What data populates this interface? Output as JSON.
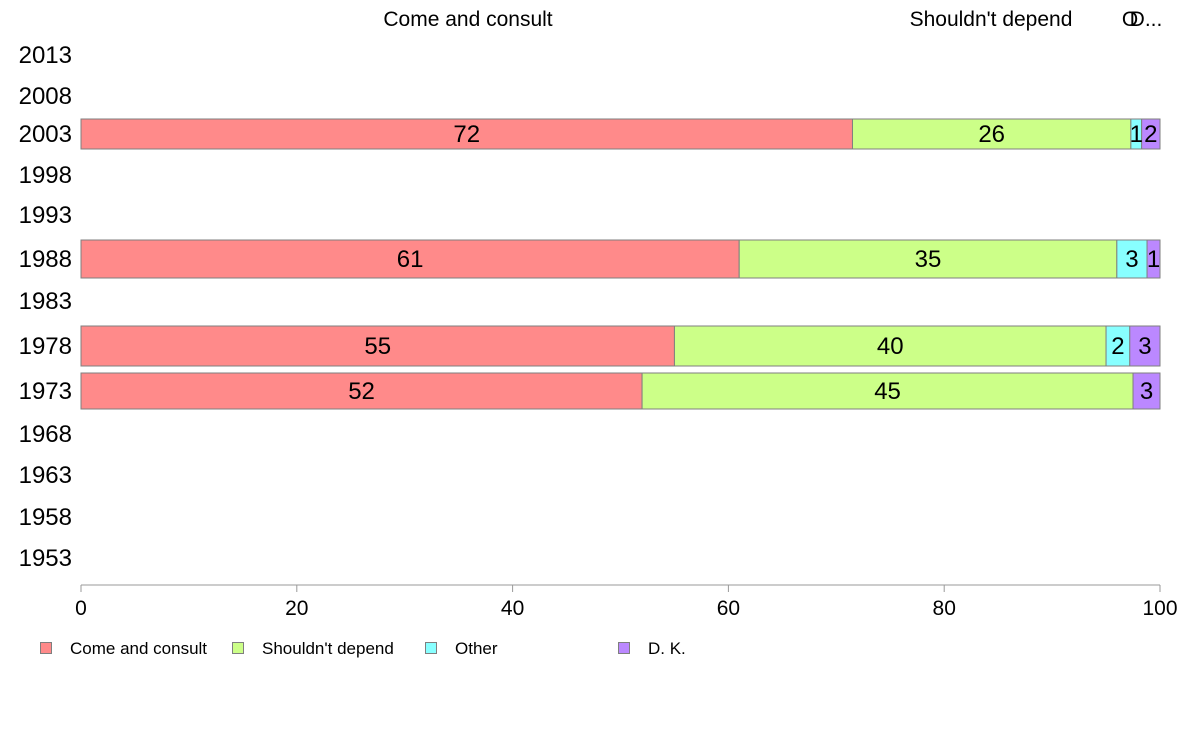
{
  "chart_data": {
    "type": "bar",
    "orientation": "horizontal",
    "stacked": true,
    "categories": [
      "2013",
      "2008",
      "2003",
      "1998",
      "1993",
      "1988",
      "1983",
      "1978",
      "1973",
      "1968",
      "1963",
      "1958",
      "1953"
    ],
    "series": [
      {
        "name": "Come and consult",
        "color": "#ff8a8a",
        "values": [
          null,
          null,
          71.5,
          null,
          null,
          61,
          null,
          55,
          52,
          null,
          null,
          null,
          null
        ],
        "labels": [
          "",
          "",
          "72",
          "",
          "",
          "61",
          "",
          "55",
          "52",
          "",
          "",
          "",
          ""
        ]
      },
      {
        "name": "Shouldn't depend",
        "color": "#ccff88",
        "values": [
          null,
          null,
          25.8,
          null,
          null,
          35,
          null,
          40,
          45.5,
          null,
          null,
          null,
          null
        ],
        "labels": [
          "",
          "",
          "26",
          "",
          "",
          "35",
          "",
          "40",
          "45",
          "",
          "",
          "",
          ""
        ]
      },
      {
        "name": "Other",
        "color": "#88ffff",
        "values": [
          null,
          null,
          1,
          null,
          null,
          2.8,
          null,
          2.2,
          0,
          null,
          null,
          null,
          null
        ],
        "labels": [
          "",
          "",
          "1",
          "",
          "",
          "3",
          "",
          "2",
          "",
          "",
          "",
          "",
          ""
        ]
      },
      {
        "name": "D. K.",
        "color": "#bb88ff",
        "values": [
          null,
          null,
          1.7,
          null,
          null,
          1.2,
          null,
          2.8,
          2.5,
          null,
          null,
          null,
          null
        ],
        "labels": [
          "",
          "",
          "2",
          "",
          "",
          "1",
          "",
          "3",
          "3",
          "",
          "",
          "",
          ""
        ]
      }
    ],
    "top_labels": [
      "Come and consult",
      "Shouldn't depend",
      "O",
      "D..."
    ],
    "x_ticks": [
      0,
      20,
      40,
      60,
      80,
      100
    ],
    "xlim": [
      0,
      100
    ],
    "grid": false,
    "legend_position": "bottom-left"
  }
}
